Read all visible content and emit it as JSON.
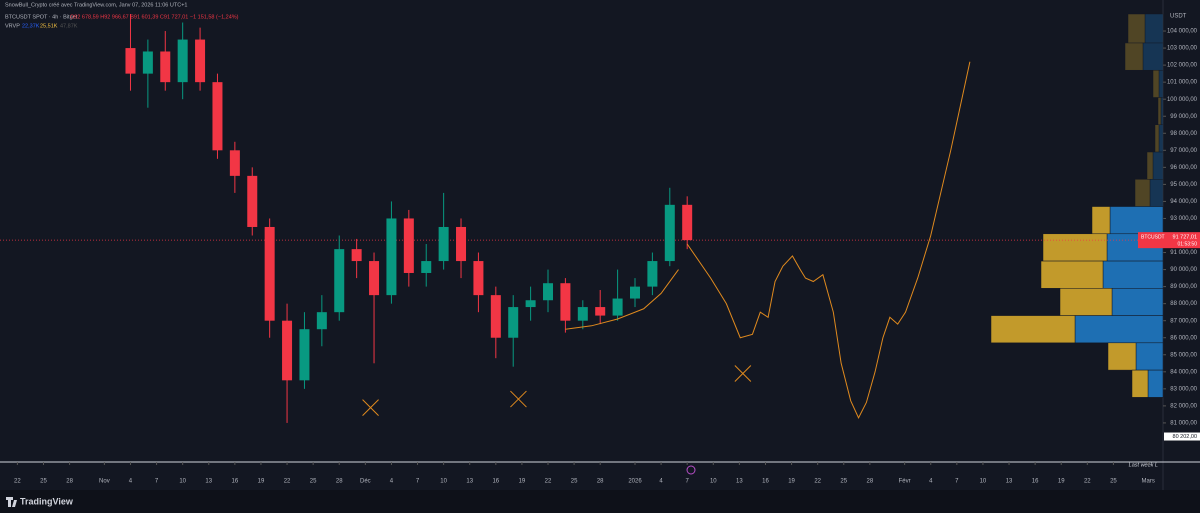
{
  "header": {
    "line1": "SnowBull_Crypto créé avec TradingView.com, Janv 07, 2026 11:06 UTC+1",
    "symbol": "BTCUSDT SPOT · 4h · Bitget",
    "ohlc": "O92 678,59 H92 966,67 B91 601,39 C91 727,01 −1 151,58 (−1,24%)",
    "indicator": "VRVP",
    "vol_up": "22,37K",
    "vol_down": "25,51K",
    "vol_total": "47,87K"
  },
  "currency": "USDT",
  "brand": "TradingView",
  "last_week_label": "Last week L",
  "chart_data": {
    "type": "candlestick",
    "x": [
      13,
      15,
      17,
      19,
      21,
      23,
      25,
      27,
      29,
      31,
      33,
      35,
      37,
      39,
      41,
      43,
      45,
      47,
      49,
      51,
      53,
      55,
      57,
      59,
      61,
      63,
      65,
      67,
      69,
      71,
      73,
      75,
      77
    ],
    "open": [
      103000,
      101500,
      102800,
      101000,
      103500,
      101000,
      97000,
      95500,
      92500,
      87000,
      83500,
      86500,
      87500,
      91200,
      90500,
      88500,
      93000,
      89800,
      90500,
      92500,
      90500,
      88500,
      86000,
      87800,
      88200,
      89200,
      87000,
      87800,
      87300,
      88300,
      89000,
      90500,
      93800
    ],
    "high": [
      105000,
      103500,
      104000,
      104500,
      104200,
      101500,
      97500,
      96000,
      93000,
      88000,
      87500,
      88500,
      92000,
      91800,
      91000,
      94000,
      93500,
      91500,
      94500,
      93000,
      91000,
      89000,
      88500,
      89000,
      90000,
      89500,
      88200,
      88800,
      90000,
      89500,
      91000,
      94800,
      94300
    ],
    "low": [
      100500,
      99500,
      100500,
      100000,
      100500,
      96500,
      94500,
      92000,
      86000,
      81000,
      83000,
      85500,
      87000,
      89500,
      84500,
      88000,
      89000,
      89000,
      90000,
      89500,
      87500,
      84800,
      84300,
      87000,
      87500,
      86300,
      86500,
      86800,
      87000,
      87800,
      88500,
      90200,
      91200
    ],
    "close": [
      101500,
      102800,
      101000,
      103500,
      101000,
      97000,
      95500,
      92500,
      87000,
      83500,
      86500,
      87500,
      91200,
      90500,
      88500,
      93000,
      89800,
      90500,
      92500,
      90500,
      88500,
      86000,
      87800,
      88200,
      89200,
      87000,
      87800,
      87300,
      88300,
      89000,
      90500,
      93800,
      91727
    ],
    "up_color": "#089981",
    "down_color": "#f23645",
    "last_price": {
      "value": 91727,
      "label": "91 727,01",
      "symbol": "BTCUSDT",
      "countdown": "01:53:50"
    },
    "last_week_low": {
      "value": 80202,
      "label": "80 202,00"
    },
    "xlim": [
      -2,
      131.7
    ],
    "ylim": [
      79000,
      105000
    ],
    "xticks": [
      {
        "value": 0,
        "label": "22"
      },
      {
        "value": 3,
        "label": "25"
      },
      {
        "value": 6,
        "label": "28"
      },
      {
        "value": 10,
        "label": "Nov"
      },
      {
        "value": 13,
        "label": "4"
      },
      {
        "value": 16,
        "label": "7"
      },
      {
        "value": 19,
        "label": "10"
      },
      {
        "value": 22,
        "label": "13"
      },
      {
        "value": 25,
        "label": "16"
      },
      {
        "value": 28,
        "label": "19"
      },
      {
        "value": 31,
        "label": "22"
      },
      {
        "value": 34,
        "label": "25"
      },
      {
        "value": 37,
        "label": "28"
      },
      {
        "value": 40,
        "label": "Déc"
      },
      {
        "value": 43,
        "label": "4"
      },
      {
        "value": 46,
        "label": "7"
      },
      {
        "value": 49,
        "label": "10"
      },
      {
        "value": 52,
        "label": "13"
      },
      {
        "value": 55,
        "label": "16"
      },
      {
        "value": 58,
        "label": "19"
      },
      {
        "value": 61,
        "label": "22"
      },
      {
        "value": 64,
        "label": "25"
      },
      {
        "value": 67,
        "label": "28"
      },
      {
        "value": 71,
        "label": "2026"
      },
      {
        "value": 74,
        "label": "4"
      },
      {
        "value": 77,
        "label": "7"
      },
      {
        "value": 80,
        "label": "10"
      },
      {
        "value": 83,
        "label": "13"
      },
      {
        "value": 86,
        "label": "16"
      },
      {
        "value": 89,
        "label": "19"
      },
      {
        "value": 92,
        "label": "22"
      },
      {
        "value": 95,
        "label": "25"
      },
      {
        "value": 98,
        "label": "28"
      },
      {
        "value": 102,
        "label": "Févr"
      },
      {
        "value": 105,
        "label": "4"
      },
      {
        "value": 108,
        "label": "7"
      },
      {
        "value": 111,
        "label": "10"
      },
      {
        "value": 114,
        "label": "13"
      },
      {
        "value": 117,
        "label": "16"
      },
      {
        "value": 120,
        "label": "19"
      },
      {
        "value": 123,
        "label": "22"
      },
      {
        "value": 126,
        "label": "25"
      },
      {
        "value": 130,
        "label": "Mars"
      }
    ],
    "yticks": [
      {
        "value": 81000,
        "label": "81 000,00"
      },
      {
        "value": 82000,
        "label": "82 000,00"
      },
      {
        "value": 83000,
        "label": "83 000,00"
      },
      {
        "value": 84000,
        "label": "84 000,00"
      },
      {
        "value": 85000,
        "label": "85 000,00"
      },
      {
        "value": 86000,
        "label": "86 000,00"
      },
      {
        "value": 87000,
        "label": "87 000,00"
      },
      {
        "value": 88000,
        "label": "88 000,00"
      },
      {
        "value": 89000,
        "label": "89 000,00"
      },
      {
        "value": 90000,
        "label": "90 000,00"
      },
      {
        "value": 91000,
        "label": "91 000,00"
      },
      {
        "value": 92000,
        "label": "92 000,00"
      },
      {
        "value": 93000,
        "label": "93 000,00"
      },
      {
        "value": 94000,
        "label": "94 000,00"
      },
      {
        "value": 95000,
        "label": "95 000,00"
      },
      {
        "value": 96000,
        "label": "96 000,00"
      },
      {
        "value": 97000,
        "label": "97 000,00"
      },
      {
        "value": 98000,
        "label": "98 000,00"
      },
      {
        "value": 99000,
        "label": "99 000,00"
      },
      {
        "value": 100000,
        "label": "100 000,00"
      },
      {
        "value": 101000,
        "label": "101 000,00"
      },
      {
        "value": 102000,
        "label": "102 000,00"
      },
      {
        "value": 103000,
        "label": "103 000,00"
      },
      {
        "value": 104000,
        "label": "104 000,00"
      }
    ],
    "volume_profile": {
      "up_color": "#1e6fb3",
      "down_color": "#c29a2b",
      "vlim": [
        0,
        172
      ],
      "price_low": [
        103300,
        101700,
        100100,
        98500,
        96900,
        95300,
        93700,
        92100,
        90500,
        88900,
        87300,
        85700,
        84100,
        82500
      ],
      "price_high": [
        105000,
        103300,
        101700,
        100100,
        98500,
        96900,
        95300,
        93700,
        92100,
        90500,
        88900,
        87300,
        85700,
        84100
      ],
      "up": [
        18,
        20,
        4,
        2,
        4,
        10,
        13,
        53,
        56,
        60,
        51,
        88,
        27,
        15
      ],
      "down": [
        17,
        18,
        6,
        3,
        4,
        6,
        15,
        18,
        64,
        62,
        52,
        84,
        28,
        16
      ]
    },
    "drawings": {
      "color": "#e08a1e",
      "projection": {
        "x": [
          77,
          79.7,
          81.5,
          83.1,
          84.5,
          85.4,
          86.3,
          87.1,
          88,
          89.1,
          90,
          90.6,
          91.5,
          92.6,
          93.8,
          94.7,
          95.8,
          96.7,
          97.6,
          98.6,
          99.5,
          100.3,
          101.2,
          102.1,
          103.5,
          105,
          107.3,
          109.5
        ],
        "y": [
          91500,
          89500,
          88000,
          86000,
          86200,
          87500,
          87200,
          89300,
          90200,
          90800,
          90000,
          89500,
          89300,
          89700,
          87500,
          84500,
          82300,
          81300,
          82200,
          84000,
          86000,
          87200,
          86800,
          87500,
          89500,
          92000,
          97000,
          102200
        ]
      },
      "arc": {
        "x": [
          63,
          66,
          69,
          72,
          74,
          76
        ],
        "y": [
          86500,
          86700,
          87100,
          87700,
          88600,
          90000
        ]
      },
      "crosses": {
        "x": [
          40.6,
          57.6,
          83.4
        ],
        "y": [
          81900,
          82400,
          83900
        ]
      }
    }
  }
}
